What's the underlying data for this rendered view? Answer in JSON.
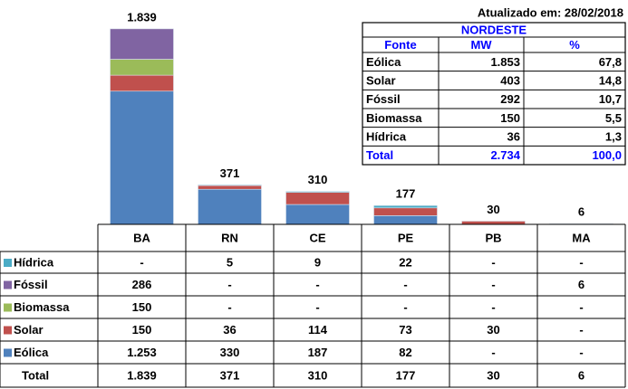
{
  "chart_data": {
    "type": "bar",
    "stacked": true,
    "categories": [
      "BA",
      "RN",
      "CE",
      "PE",
      "PB",
      "MA"
    ],
    "series": [
      {
        "name": "Eólica",
        "color": "#4f81bd",
        "values": [
          1253,
          330,
          187,
          82,
          null,
          null
        ],
        "value_labels": [
          "1.253",
          "330",
          "187",
          "82",
          "-",
          "-"
        ]
      },
      {
        "name": "Solar",
        "color": "#c0504d",
        "values": [
          150,
          36,
          114,
          73,
          30,
          null
        ],
        "value_labels": [
          "150",
          "36",
          "114",
          "73",
          "30",
          "-"
        ]
      },
      {
        "name": "Biomassa",
        "color": "#9bbb59",
        "values": [
          150,
          null,
          null,
          null,
          null,
          null
        ],
        "value_labels": [
          "150",
          "-",
          "-",
          "-",
          "-",
          "-"
        ]
      },
      {
        "name": "Fóssil",
        "color": "#8064a2",
        "values": [
          286,
          null,
          null,
          null,
          null,
          6
        ],
        "value_labels": [
          "286",
          "-",
          "-",
          "-",
          "-",
          "6"
        ]
      },
      {
        "name": "Hídrica",
        "color": "#4bacc6",
        "values": [
          null,
          5,
          9,
          22,
          null,
          null
        ],
        "value_labels": [
          "-",
          "5",
          "9",
          "22",
          "-",
          "-"
        ]
      }
    ],
    "total_label": "Total",
    "totals": {
      "values": [
        1839,
        371,
        310,
        177,
        30,
        6
      ],
      "value_labels": [
        "1.839",
        "371",
        "310",
        "177",
        "30",
        "6"
      ]
    },
    "ylim": [
      0,
      1940
    ]
  },
  "summary_table": {
    "updated": "Atualizado em: 28/02/2018",
    "region": "NORDESTE",
    "header": [
      "Fonte",
      "MW",
      "%"
    ],
    "rows": [
      [
        "Eólica",
        "1.853",
        "67,8"
      ],
      [
        "Solar",
        "403",
        "14,8"
      ],
      [
        "Fóssil",
        "292",
        "10,7"
      ],
      [
        "Biomassa",
        "150",
        "5,5"
      ],
      [
        "Hídrica",
        "36",
        "1,3"
      ]
    ],
    "total": [
      "Total",
      "2.734",
      "100,0"
    ]
  }
}
